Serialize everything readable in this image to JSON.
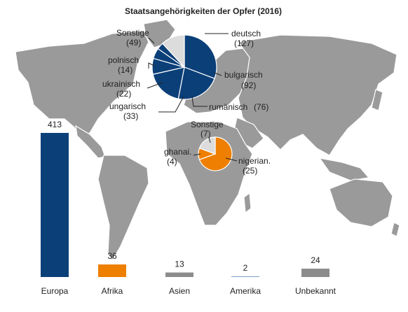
{
  "chart_data": [
    {
      "type": "bar",
      "title": "Staatsangehörigkeiten der Opfer (2016)",
      "categories": [
        "Europa",
        "Afrika",
        "Asien",
        "Amerika",
        "Unbekannt"
      ],
      "values": [
        413,
        36,
        13,
        2,
        24
      ],
      "colors": [
        "#0b3f78",
        "#ee7f00",
        "#8c8c8c",
        "#8c8c8c",
        "#8c8c8c"
      ],
      "ylim": [
        0,
        413
      ]
    },
    {
      "type": "pie",
      "region": "Europa",
      "slices": [
        {
          "label": "deutsch",
          "value": 127
        },
        {
          "label": "bulgarisch",
          "value": 92
        },
        {
          "label": "rumänisch",
          "value": 76
        },
        {
          "label": "ungarisch",
          "value": 33
        },
        {
          "label": "ukrainisch",
          "value": 22
        },
        {
          "label": "polnisch",
          "value": 14
        },
        {
          "label": "Sonstige",
          "value": 49
        }
      ],
      "colors": [
        "#0b3f78",
        "#0b3f78",
        "#0b3f78",
        "#0b3f78",
        "#0b3f78",
        "#0b3f78",
        "#dcdcdc"
      ]
    },
    {
      "type": "pie",
      "region": "Afrika",
      "slices": [
        {
          "label": "nigerian.",
          "value": 25
        },
        {
          "label": "ghanai.",
          "value": 4
        },
        {
          "label": "Sonstige",
          "value": 7
        }
      ],
      "colors": [
        "#ee7f00",
        "#ee7f00",
        "#dcdcdc"
      ]
    }
  ],
  "map": {
    "fill": "#9a9a9a"
  }
}
